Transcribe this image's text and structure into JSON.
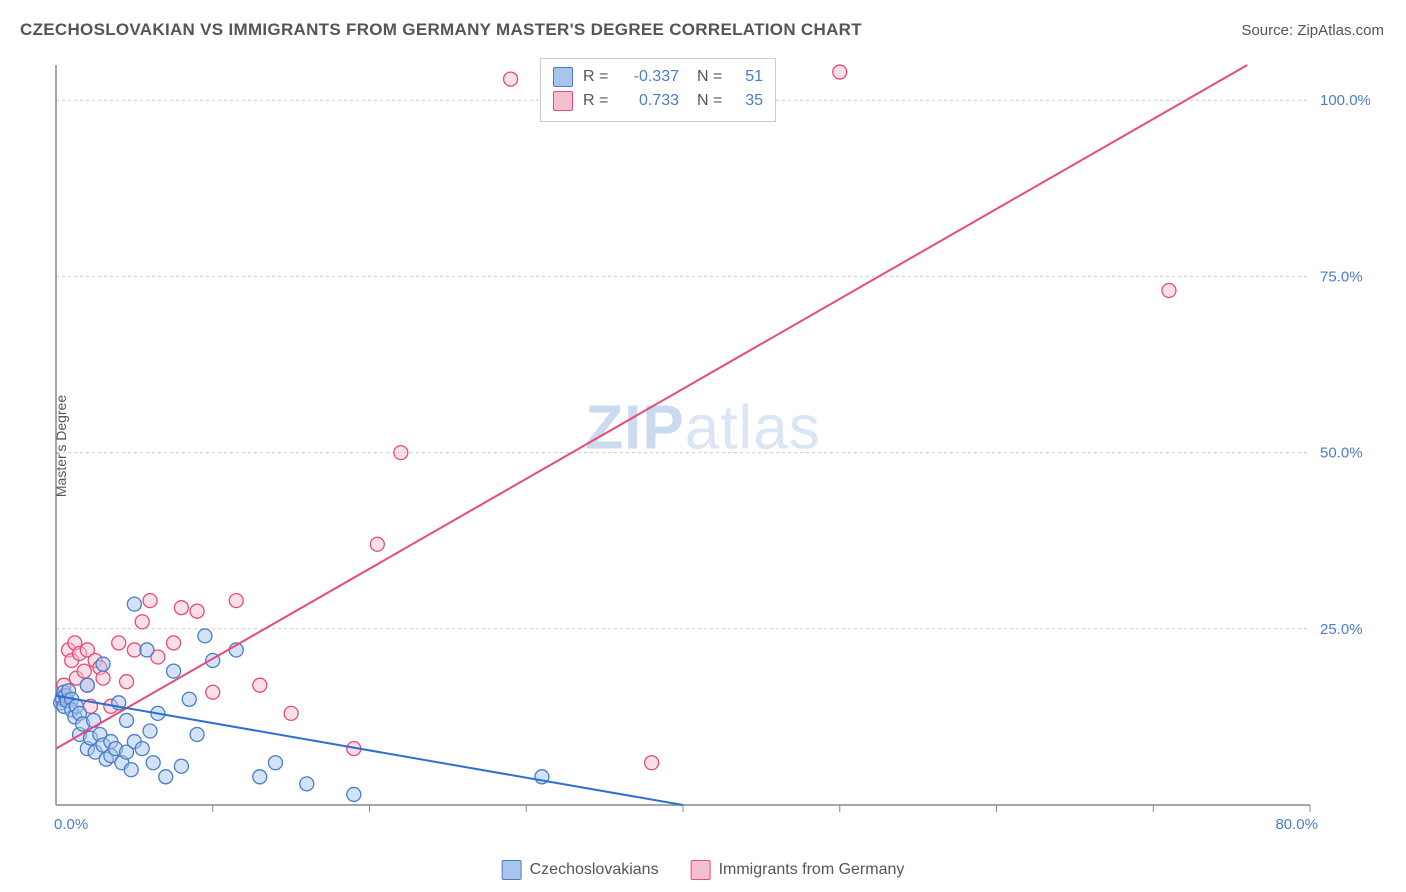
{
  "title": "CZECHOSLOVAKIAN VS IMMIGRANTS FROM GERMANY MASTER'S DEGREE CORRELATION CHART",
  "source": "Source: ZipAtlas.com",
  "ylabel": "Master's Degree",
  "watermark": {
    "left": "ZIP",
    "right": "atlas"
  },
  "chart": {
    "type": "scatter",
    "xlim": [
      0,
      80
    ],
    "ylim": [
      0,
      105
    ],
    "x_axis_start_label": "0.0%",
    "x_axis_end_label": "80.0%",
    "y_ticks": [
      25,
      50,
      75,
      100
    ],
    "y_tick_labels": [
      "25.0%",
      "50.0%",
      "75.0%",
      "100.0%"
    ],
    "x_tick_positions": [
      10,
      20,
      30,
      40,
      50,
      60,
      70,
      80
    ],
    "background_color": "#ffffff",
    "grid_color": "#cccccc",
    "axis_color": "#888888",
    "label_color": "#4a7dc9",
    "title_color": "#555555",
    "marker_radius": 7,
    "marker_opacity": 0.5,
    "line_width": 2,
    "series": [
      {
        "name": "Czechoslovakians",
        "fill": "#a9c5ec",
        "stroke": "#4a7dc9",
        "line_color": "#2e6fd1",
        "R": "-0.337",
        "N": "51",
        "trend": {
          "x1": 0,
          "y1": 15.5,
          "x2": 40,
          "y2": 0
        },
        "points": [
          [
            0.3,
            14.5
          ],
          [
            0.4,
            15.2
          ],
          [
            0.5,
            16
          ],
          [
            0.5,
            14
          ],
          [
            0.6,
            15.5
          ],
          [
            0.7,
            14.8
          ],
          [
            0.8,
            16.2
          ],
          [
            1,
            15
          ],
          [
            1,
            13.5
          ],
          [
            1.2,
            12.5
          ],
          [
            1.3,
            14
          ],
          [
            1.5,
            13
          ],
          [
            1.5,
            10
          ],
          [
            1.7,
            11.5
          ],
          [
            2,
            17
          ],
          [
            2,
            8
          ],
          [
            2.2,
            9.5
          ],
          [
            2.4,
            12
          ],
          [
            2.5,
            7.5
          ],
          [
            2.8,
            10
          ],
          [
            3,
            8.5
          ],
          [
            3,
            20
          ],
          [
            3.2,
            6.5
          ],
          [
            3.5,
            9
          ],
          [
            3.5,
            7
          ],
          [
            3.8,
            8
          ],
          [
            4,
            14.5
          ],
          [
            4.2,
            6
          ],
          [
            4.5,
            12
          ],
          [
            4.5,
            7.5
          ],
          [
            4.8,
            5
          ],
          [
            5,
            28.5
          ],
          [
            5,
            9
          ],
          [
            5.5,
            8
          ],
          [
            5.8,
            22
          ],
          [
            6,
            10.5
          ],
          [
            6.2,
            6
          ],
          [
            6.5,
            13
          ],
          [
            7,
            4
          ],
          [
            7.5,
            19
          ],
          [
            8,
            5.5
          ],
          [
            8.5,
            15
          ],
          [
            9,
            10
          ],
          [
            9.5,
            24
          ],
          [
            10,
            20.5
          ],
          [
            11.5,
            22
          ],
          [
            13,
            4
          ],
          [
            14,
            6
          ],
          [
            16,
            3
          ],
          [
            19,
            1.5
          ],
          [
            31,
            4
          ]
        ]
      },
      {
        "name": "Immigrants from Germany",
        "fill": "#f4c0cf",
        "stroke": "#e84a7a",
        "line_color": "#e84a7a",
        "R": "0.733",
        "N": "35",
        "trend": {
          "x1": 0,
          "y1": 8,
          "x2": 76,
          "y2": 105
        },
        "points": [
          [
            0.4,
            15
          ],
          [
            0.5,
            17
          ],
          [
            0.8,
            22
          ],
          [
            1,
            20.5
          ],
          [
            1.2,
            23
          ],
          [
            1.3,
            18
          ],
          [
            1.5,
            21.5
          ],
          [
            1.8,
            19
          ],
          [
            2,
            22
          ],
          [
            2,
            17
          ],
          [
            2.2,
            14
          ],
          [
            2.5,
            20.5
          ],
          [
            2.8,
            19.5
          ],
          [
            3,
            18
          ],
          [
            3.5,
            14
          ],
          [
            4,
            23
          ],
          [
            4.5,
            17.5
          ],
          [
            5,
            22
          ],
          [
            5.5,
            26
          ],
          [
            6,
            29
          ],
          [
            6.5,
            21
          ],
          [
            7.5,
            23
          ],
          [
            8,
            28
          ],
          [
            9,
            27.5
          ],
          [
            10,
            16
          ],
          [
            11.5,
            29
          ],
          [
            13,
            17
          ],
          [
            15,
            13
          ],
          [
            19,
            8
          ],
          [
            20.5,
            37
          ],
          [
            22,
            50
          ],
          [
            29,
            103
          ],
          [
            38,
            6
          ],
          [
            50,
            104
          ],
          [
            71,
            73
          ]
        ]
      }
    ]
  },
  "legend_bottom": {
    "items": [
      "Czechoslovakians",
      "Immigrants from Germany"
    ]
  }
}
